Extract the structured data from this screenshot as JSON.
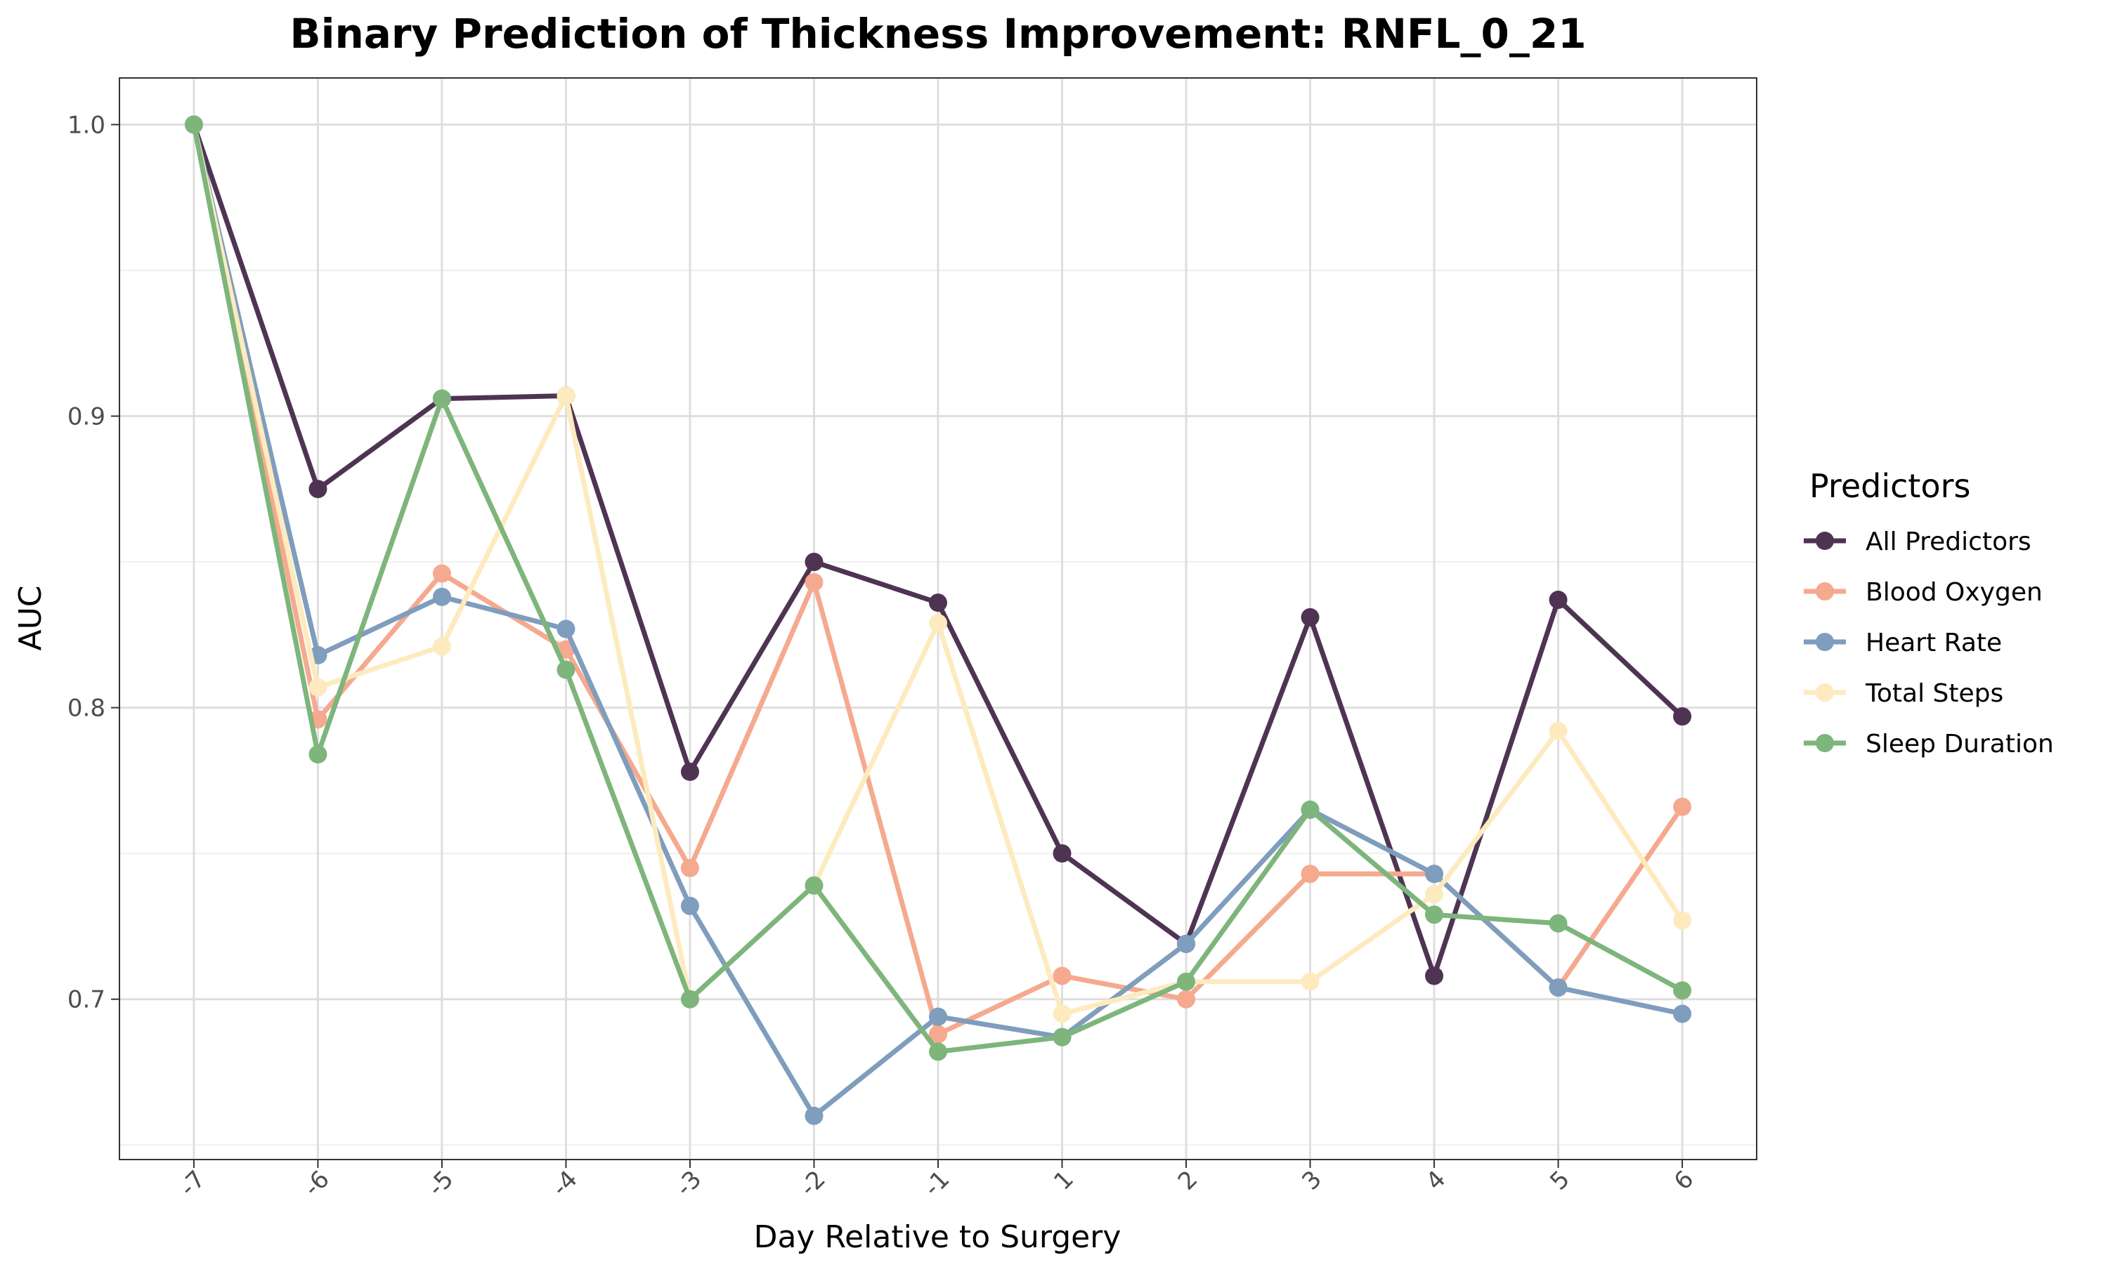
{
  "chart_data": {
    "type": "line",
    "title": "Binary Prediction of Thickness Improvement: RNFL_0_21",
    "xlabel": "Day Relative to Surgery",
    "ylabel": "AUC",
    "categories": [
      "-7",
      "-6",
      "-5",
      "-4",
      "-3",
      "-2",
      "-1",
      "1",
      "2",
      "3",
      "4",
      "5",
      "6"
    ],
    "ylim": [
      0.645,
      1.016
    ],
    "yticks": [
      0.7,
      0.8,
      0.9,
      1.0
    ],
    "ytick_labels": [
      "0.7",
      "0.8",
      "0.9",
      "1.0"
    ],
    "grid": true,
    "legend": {
      "title": "Predictors",
      "position": "right"
    },
    "series": [
      {
        "name": "All Predictors",
        "color": "#4e3452",
        "values": [
          1.0,
          0.875,
          0.906,
          0.907,
          0.778,
          0.85,
          0.836,
          0.75,
          0.719,
          0.831,
          0.708,
          0.837,
          0.797
        ]
      },
      {
        "name": "Blood Oxygen",
        "color": "#f5a98f",
        "values": [
          1.0,
          0.796,
          0.846,
          0.82,
          0.745,
          0.843,
          0.688,
          0.708,
          0.7,
          0.743,
          0.743,
          0.704,
          0.766
        ]
      },
      {
        "name": "Heart Rate",
        "color": "#7f9dbd",
        "values": [
          1.0,
          0.818,
          0.838,
          0.827,
          0.732,
          0.66,
          0.694,
          0.687,
          0.719,
          0.765,
          0.743,
          0.704,
          0.695
        ]
      },
      {
        "name": "Total Steps",
        "color": "#fdebbf",
        "values": [
          1.0,
          0.807,
          0.821,
          0.907,
          0.7,
          0.739,
          0.829,
          0.695,
          0.706,
          0.706,
          0.736,
          0.792,
          0.727
        ]
      },
      {
        "name": "Sleep Duration",
        "color": "#7db57b",
        "values": [
          1.0,
          0.784,
          0.906,
          0.813,
          0.7,
          0.739,
          0.682,
          0.687,
          0.706,
          0.765,
          0.729,
          0.726,
          0.703
        ]
      }
    ]
  }
}
